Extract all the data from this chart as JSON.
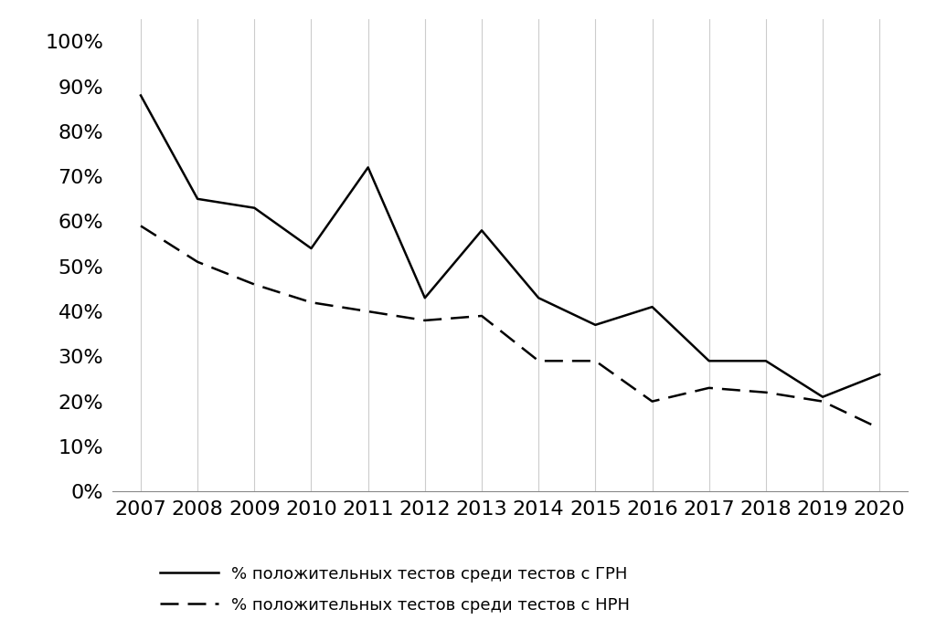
{
  "years": [
    2007,
    2008,
    2009,
    2010,
    2011,
    2012,
    2013,
    2014,
    2015,
    2016,
    2017,
    2018,
    2019,
    2020
  ],
  "grn": [
    0.88,
    0.65,
    0.63,
    0.54,
    0.72,
    0.43,
    0.58,
    0.43,
    0.37,
    0.41,
    0.29,
    0.29,
    0.21,
    0.26
  ],
  "nrn": [
    0.59,
    0.51,
    0.46,
    0.42,
    0.4,
    0.38,
    0.39,
    0.29,
    0.29,
    0.2,
    0.23,
    0.22,
    0.2,
    0.14
  ],
  "grn_label": "% положительных тестов среди тестов с ГРН",
  "nrn_label": "% положительных тестов среди тестов с НРН",
  "grn_color": "#000000",
  "nrn_color": "#000000",
  "background_color": "#ffffff",
  "ylim": [
    0,
    1.05
  ],
  "yticks": [
    0.0,
    0.1,
    0.2,
    0.3,
    0.4,
    0.5,
    0.6,
    0.7,
    0.8,
    0.9,
    1.0
  ],
  "grid_color": "#cccccc",
  "line_width": 1.8,
  "tick_fontsize": 16,
  "legend_fontsize": 13
}
